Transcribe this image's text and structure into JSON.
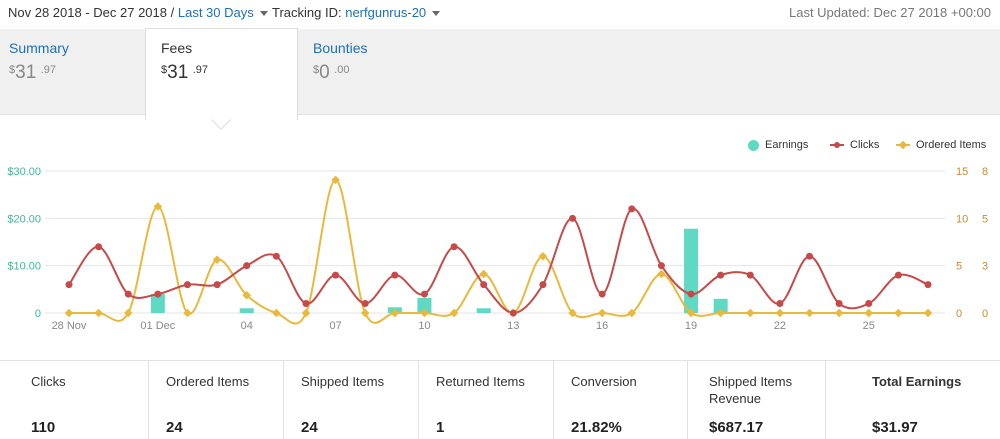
{
  "header": {
    "date_range": "Nov 28 2018 - Dec 27 2018 /",
    "range_link": "Last 30 Days",
    "tracking_label": "Tracking ID:",
    "tracking_id": "nerfgunrus-20",
    "last_updated": "Last Updated: Dec 27 2018 +00:00"
  },
  "tabs": [
    {
      "name": "Summary",
      "currency": "$",
      "whole": "31",
      "cents": ".97"
    },
    {
      "name": "Fees",
      "currency": "$",
      "whole": "31",
      "cents": ".97"
    },
    {
      "name": "Bounties",
      "currency": "$",
      "whole": "0",
      "cents": ".00"
    }
  ],
  "legend": {
    "earnings": "Earnings",
    "clicks": "Clicks",
    "ordered": "Ordered Items"
  },
  "colors": {
    "earnings": "#5fd9c3",
    "clicks": "#c64a4a",
    "ordered": "#e8b93c",
    "left_axis": "#3fb89d",
    "right_axis": "#c98a3a"
  },
  "chart_data": {
    "type": "line",
    "x": [
      "28 Nov",
      "29",
      "30",
      "01 Dec",
      "02",
      "03",
      "04",
      "05",
      "06",
      "07",
      "08",
      "09",
      "10",
      "11",
      "12",
      "13",
      "14",
      "15",
      "16",
      "17",
      "18",
      "19",
      "20",
      "21",
      "22",
      "23",
      "24",
      "25",
      "26",
      "27"
    ],
    "x_tick_labels": [
      "28 Nov",
      "01 Dec",
      "04",
      "07",
      "10",
      "13",
      "16",
      "19",
      "22",
      "25"
    ],
    "y_left_ticks": [
      "0",
      "$10.00",
      "$20.00",
      "$30.00"
    ],
    "y_right_outer_ticks": [
      "0",
      "3",
      "5",
      "8"
    ],
    "y_right_inner_ticks": [
      "0",
      "5",
      "10",
      "15"
    ],
    "series": [
      {
        "name": "Earnings",
        "kind": "bar",
        "axis": "left",
        "ylim": [
          0,
          30
        ],
        "values": [
          0,
          0,
          0,
          4,
          0,
          0,
          1,
          0,
          0,
          0,
          0,
          1.2,
          3.2,
          0,
          1,
          0,
          0,
          0,
          0,
          0,
          0,
          17.8,
          3,
          0,
          0,
          0,
          0,
          0,
          0,
          0
        ]
      },
      {
        "name": "Clicks",
        "kind": "line",
        "axis": "right-inner",
        "ylim": [
          0,
          15
        ],
        "values": [
          3,
          7,
          2,
          2,
          3,
          3,
          5,
          6,
          1,
          4,
          1,
          4,
          2,
          7,
          3,
          0,
          3,
          10,
          2,
          11,
          5,
          2,
          4,
          4,
          1,
          6,
          1,
          1,
          4,
          3
        ]
      },
      {
        "name": "Ordered Items",
        "kind": "line",
        "axis": "right-outer",
        "ylim": [
          0,
          8
        ],
        "values": [
          0,
          0,
          0,
          6,
          0,
          3,
          1,
          0,
          0,
          7.5,
          0,
          0,
          0,
          0,
          2.2,
          0,
          3.2,
          0,
          0,
          0,
          2.2,
          0,
          0,
          0,
          0,
          0,
          0,
          0,
          0,
          0
        ]
      }
    ]
  },
  "stats": [
    {
      "label": "Clicks",
      "value": "110"
    },
    {
      "label": "Ordered Items",
      "value": "24"
    },
    {
      "label": "Shipped Items",
      "value": "24"
    },
    {
      "label": "Returned Items",
      "value": "1"
    },
    {
      "label": "Conversion",
      "value": "21.82%"
    },
    {
      "label": "Shipped Items Revenue",
      "value": "$687.17"
    },
    {
      "label": "Total Earnings",
      "value": "$31.97"
    }
  ]
}
